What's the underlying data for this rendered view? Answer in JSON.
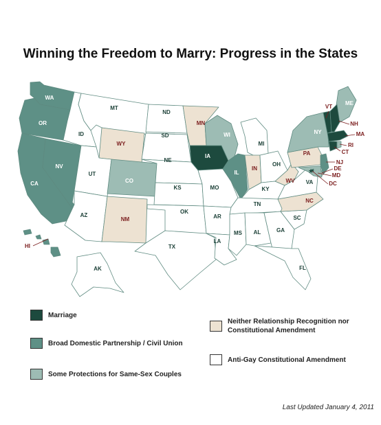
{
  "title": "Winning the Freedom to Marry: Progress in the States",
  "last_updated": "Last Updated January 4, 2011",
  "colors": {
    "marriage": "#1d4a3e",
    "civil_union": "#5e9086",
    "some_protections": "#9dbcb4",
    "neither": "#ede2d2",
    "amendment": "#ffffff",
    "border": "#5e8a80",
    "label_dark": "#1c4037",
    "label_red": "#7b1e1e"
  },
  "legend": [
    {
      "key": "marriage",
      "label": "Marriage"
    },
    {
      "key": "civil_union",
      "label": "Broad Domestic Partnership / Civil Union"
    },
    {
      "key": "some_protections",
      "label": "Some Protections for Same-Sex Couples"
    },
    {
      "key": "neither",
      "label": "Neither Relationship Recognition nor Constitutional Amendment"
    },
    {
      "key": "amendment",
      "label": "Anti-Gay Constitutional Amendment"
    }
  ],
  "states": [
    {
      "abbr": "WA",
      "status": "civil_union"
    },
    {
      "abbr": "OR",
      "status": "civil_union"
    },
    {
      "abbr": "CA",
      "status": "civil_union"
    },
    {
      "abbr": "NV",
      "status": "civil_union"
    },
    {
      "abbr": "ID",
      "status": "amendment"
    },
    {
      "abbr": "MT",
      "status": "amendment"
    },
    {
      "abbr": "WY",
      "status": "neither"
    },
    {
      "abbr": "UT",
      "status": "amendment"
    },
    {
      "abbr": "CO",
      "status": "some_protections"
    },
    {
      "abbr": "AZ",
      "status": "amendment"
    },
    {
      "abbr": "NM",
      "status": "neither"
    },
    {
      "abbr": "ND",
      "status": "amendment"
    },
    {
      "abbr": "SD",
      "status": "amendment"
    },
    {
      "abbr": "NE",
      "status": "amendment"
    },
    {
      "abbr": "KS",
      "status": "amendment"
    },
    {
      "abbr": "OK",
      "status": "amendment"
    },
    {
      "abbr": "TX",
      "status": "amendment"
    },
    {
      "abbr": "MN",
      "status": "neither"
    },
    {
      "abbr": "IA",
      "status": "marriage"
    },
    {
      "abbr": "MO",
      "status": "amendment"
    },
    {
      "abbr": "AR",
      "status": "amendment"
    },
    {
      "abbr": "LA",
      "status": "amendment"
    },
    {
      "abbr": "WI",
      "status": "some_protections"
    },
    {
      "abbr": "IL",
      "status": "civil_union"
    },
    {
      "abbr": "MI",
      "status": "amendment"
    },
    {
      "abbr": "IN",
      "status": "neither"
    },
    {
      "abbr": "OH",
      "status": "amendment"
    },
    {
      "abbr": "KY",
      "status": "amendment"
    },
    {
      "abbr": "TN",
      "status": "amendment"
    },
    {
      "abbr": "MS",
      "status": "amendment"
    },
    {
      "abbr": "AL",
      "status": "amendment"
    },
    {
      "abbr": "GA",
      "status": "amendment"
    },
    {
      "abbr": "FL",
      "status": "amendment"
    },
    {
      "abbr": "SC",
      "status": "amendment"
    },
    {
      "abbr": "NC",
      "status": "neither"
    },
    {
      "abbr": "VA",
      "status": "amendment"
    },
    {
      "abbr": "WV",
      "status": "neither"
    },
    {
      "abbr": "PA",
      "status": "neither"
    },
    {
      "abbr": "NY",
      "status": "some_protections"
    },
    {
      "abbr": "ME",
      "status": "some_protections"
    },
    {
      "abbr": "VT",
      "status": "marriage"
    },
    {
      "abbr": "NH",
      "status": "marriage"
    },
    {
      "abbr": "MA",
      "status": "marriage"
    },
    {
      "abbr": "CT",
      "status": "marriage"
    },
    {
      "abbr": "RI",
      "status": "some_protections"
    },
    {
      "abbr": "NJ",
      "status": "civil_union"
    },
    {
      "abbr": "DE",
      "status": "neither"
    },
    {
      "abbr": "MD",
      "status": "some_protections"
    },
    {
      "abbr": "DC",
      "status": "marriage"
    },
    {
      "abbr": "AK",
      "status": "amendment"
    },
    {
      "abbr": "HI",
      "status": "civil_union"
    }
  ]
}
